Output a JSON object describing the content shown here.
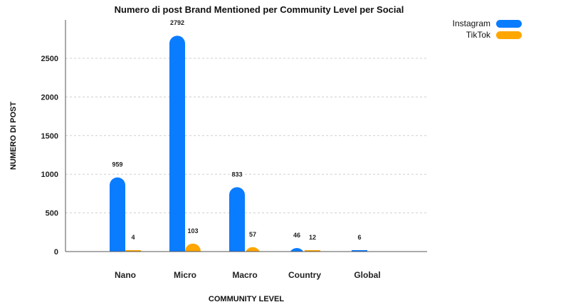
{
  "chart_data": {
    "type": "bar",
    "title": "Numero di post Brand Mentioned per Community Level per Social",
    "xlabel": "COMMUNITY LEVEL",
    "ylabel": "NUMERO DI POST",
    "categories": [
      "Nano",
      "Micro",
      "Macro",
      "Country",
      "Global"
    ],
    "series": [
      {
        "name": "Instagram",
        "color": "#0a7cff",
        "values": [
          959,
          2792,
          833,
          46,
          6
        ]
      },
      {
        "name": "TikTok",
        "color": "#ffa600",
        "values": [
          4,
          103,
          57,
          12,
          null
        ]
      }
    ],
    "data_labels": [
      [
        "959",
        "2792",
        "833",
        "46",
        "6"
      ],
      [
        "4",
        "103",
        "57",
        "12",
        ""
      ]
    ],
    "yticks": [
      0,
      500,
      1000,
      1500,
      2000,
      2500
    ],
    "ylim": [
      0,
      3000
    ],
    "grid": true,
    "legend_position": "top-right"
  }
}
